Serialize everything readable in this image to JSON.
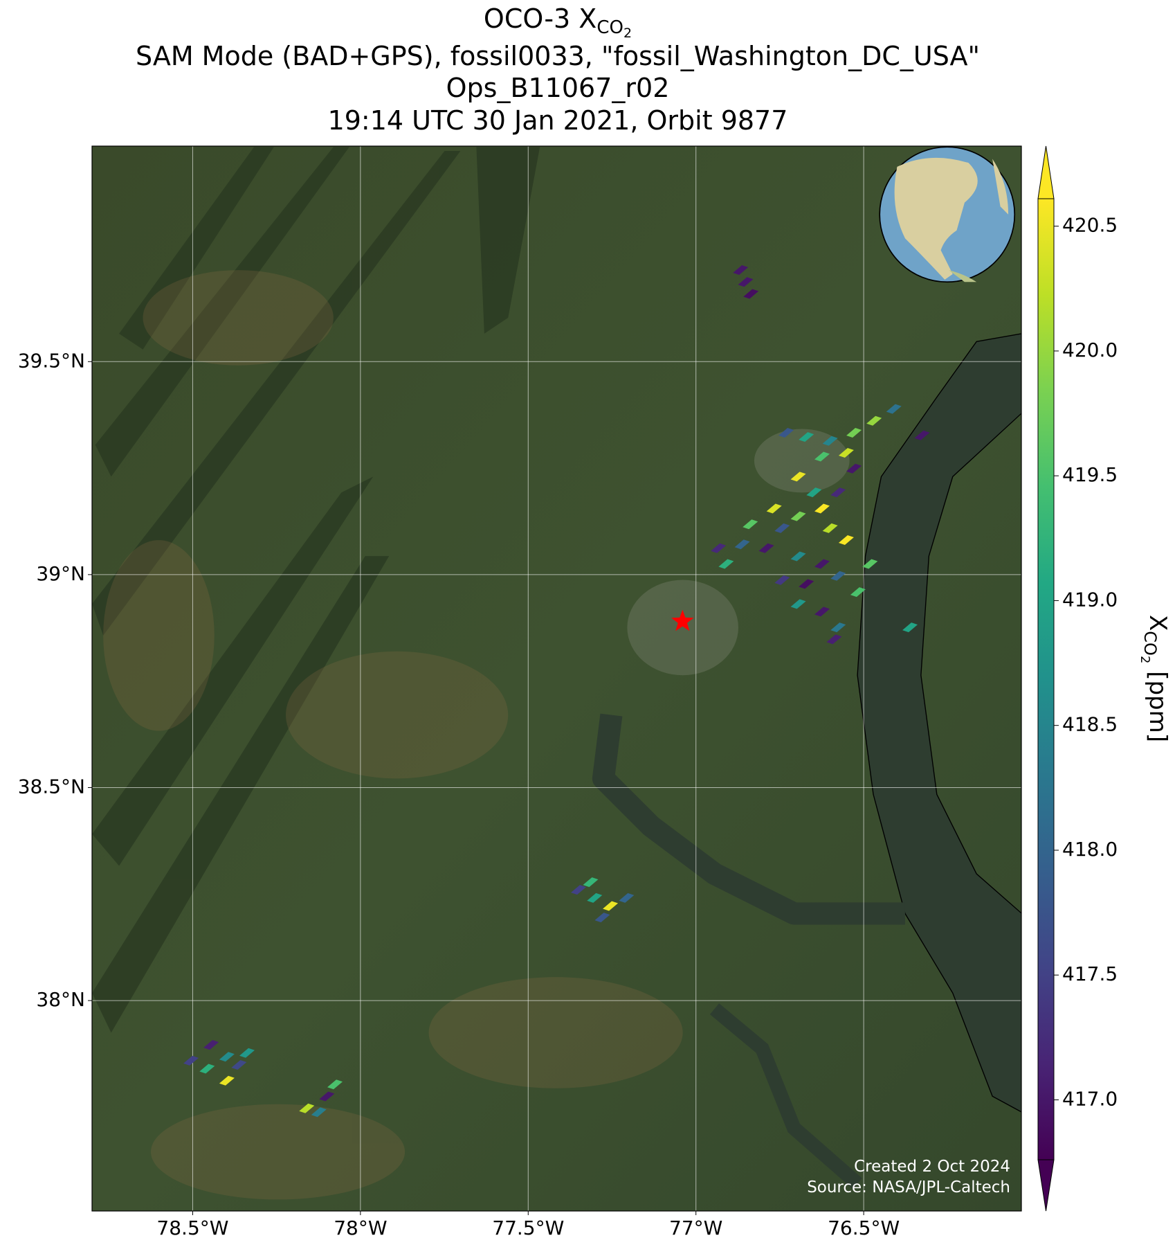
{
  "chart_data": {
    "type": "map",
    "title": {
      "text": "OCO-3 X",
      "sub": "CO",
      "subsub": "2"
    },
    "subtitle_lines": [
      "SAM Mode (BAD+GPS), fossil0033, \"fossil_Washington_DC_USA\"",
      "Ops_B11067_r02",
      "19:14 UTC 30 Jan 2021, Orbit 9877"
    ],
    "xlim": [
      -78.8,
      -76.03
    ],
    "ylim": [
      37.506,
      40.006
    ],
    "xticks": [
      {
        "value": -78.5,
        "label": "78.5°W"
      },
      {
        "value": -78,
        "label": "78°W"
      },
      {
        "value": -77.5,
        "label": "77.5°W"
      },
      {
        "value": -77,
        "label": "77°W"
      },
      {
        "value": -76.5,
        "label": "76.5°W"
      }
    ],
    "yticks": [
      {
        "value": 39.5,
        "label": "39.5°N"
      },
      {
        "value": 39,
        "label": "39°N"
      },
      {
        "value": 38.5,
        "label": "38.5°N"
      },
      {
        "value": 38,
        "label": "38°N"
      }
    ],
    "grid": true,
    "colormap": "viridis",
    "clim": [
      416.76,
      420.61
    ],
    "cticks": [
      {
        "value": 417,
        "label": "417.0"
      },
      417.5,
      {
        "value": 418,
        "label": "418.0"
      },
      418.5,
      {
        "value": 419,
        "label": "419.0"
      },
      419.5,
      {
        "value": 420,
        "label": "420.0"
      },
      420.5
    ],
    "colorbar_label": {
      "text": "X",
      "sub": "CO",
      "subsub": "2",
      "unit": " [ppm]"
    },
    "target_marker": {
      "lon": -77.04,
      "lat": 38.89,
      "color": "#ff0000"
    },
    "soundings": {
      "lon": [
        -76.867,
        -76.852,
        -76.836,
        -76.731,
        -76.671,
        -76.6,
        -76.529,
        -76.469,
        -76.41,
        -76.552,
        -76.326,
        -76.624,
        -76.529,
        -76.695,
        -76.648,
        -76.767,
        -76.695,
        -76.624,
        -76.838,
        -76.743,
        -76.576,
        -76.933,
        -76.862,
        -76.79,
        -76.91,
        -76.552,
        -76.6,
        -76.695,
        -76.624,
        -76.743,
        -76.671,
        -76.576,
        -76.517,
        -76.695,
        -76.624,
        -76.576,
        -76.588,
        -76.481,
        -76.362,
        -77.35,
        -77.302,
        -77.255,
        -77.207,
        -77.279,
        -77.314,
        -78.505,
        -78.445,
        -78.398,
        -78.457,
        -78.362,
        -78.398,
        -78.338,
        -78.16,
        -78.124,
        -78.1,
        -78.076
      ],
      "lat": [
        39.715,
        39.687,
        39.659,
        39.333,
        39.323,
        39.314,
        39.333,
        39.361,
        39.389,
        39.286,
        39.327,
        39.277,
        39.249,
        39.23,
        39.193,
        39.155,
        39.137,
        39.155,
        39.118,
        39.109,
        39.193,
        39.062,
        39.071,
        39.062,
        39.025,
        39.081,
        39.109,
        39.043,
        39.025,
        38.987,
        38.978,
        38.997,
        38.959,
        38.931,
        38.913,
        38.876,
        38.848,
        39.025,
        38.876,
        38.26,
        38.241,
        38.222,
        38.241,
        38.195,
        38.278,
        37.859,
        37.896,
        37.868,
        37.84,
        37.849,
        37.812,
        37.877,
        37.747,
        37.738,
        37.775,
        37.803
      ],
      "xco2": [
        417.0,
        417.0,
        416.9,
        417.8,
        419.0,
        418.5,
        419.8,
        420.0,
        418.2,
        420.3,
        417.0,
        419.5,
        417.0,
        420.5,
        419.0,
        420.4,
        419.8,
        420.6,
        419.6,
        417.8,
        417.2,
        417.2,
        418.0,
        417.0,
        419.2,
        420.6,
        420.2,
        418.6,
        417.0,
        417.4,
        416.9,
        418.0,
        419.5,
        418.8,
        417.0,
        418.3,
        417.1,
        419.6,
        419.0,
        417.5,
        419.0,
        420.5,
        418.0,
        417.8,
        419.3,
        417.5,
        417.1,
        418.6,
        419.2,
        417.6,
        420.5,
        418.8,
        420.2,
        418.4,
        417.0,
        419.5
      ]
    },
    "credits": [
      "Created 2 Oct 2024",
      "Source: NASA/JPL-Caltech"
    ]
  }
}
